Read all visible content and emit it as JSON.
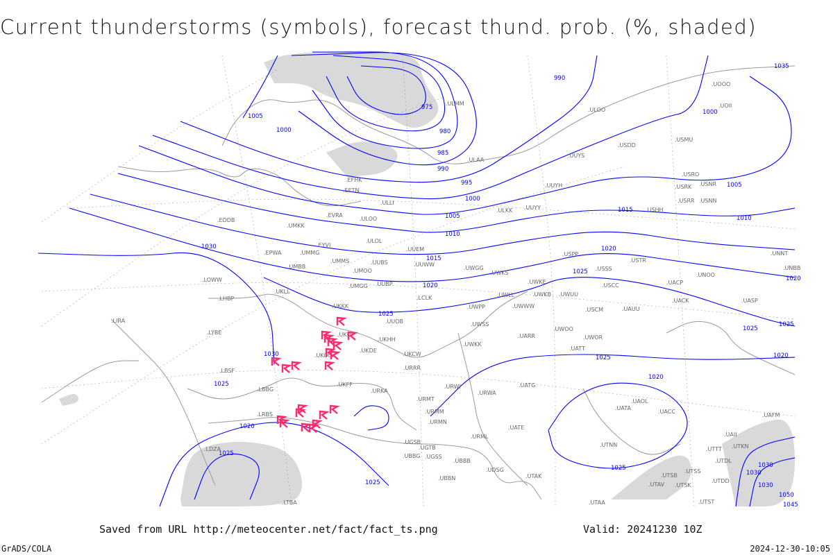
{
  "title": "Current thunderstorms (symbols), forecast thund. prob. (%, shaded)",
  "footer": {
    "source": "Saved from URL http://meteocenter.net/fact/fact_ts.png",
    "valid": "Valid: 20241230 10Z",
    "credit": "GrADS/COLA",
    "timestamp": "2024-12-30-10:05"
  },
  "colors": {
    "isobar": "#0000ff",
    "thunderstorm_symbol": "#ff2a6a",
    "shading": "#d9d9d9",
    "coastline": "#9a9a9a"
  },
  "isobar_labels": [
    "975",
    "980",
    "985",
    "990",
    "995",
    "1000",
    "1005",
    "1010",
    "1015",
    "1020",
    "1025",
    "1030",
    "1005",
    "1000",
    "990",
    "1000",
    "1005",
    "1010",
    "1015",
    "1020",
    "1020",
    "1025",
    "1025",
    "1025",
    "1025",
    "1020",
    "1020",
    "1025",
    "1030",
    "1030",
    "1025",
    "1020",
    "1025",
    "1025",
    "1035",
    "1030",
    "1030",
    "1045",
    "1050"
  ],
  "stations": [
    "ULLI",
    "ULOO",
    "UMKK",
    "EVRA",
    "EETN",
    "EFHK",
    "ULOL",
    "UUEM",
    "EYVI",
    "UMMG",
    "UMMS",
    "UMOO",
    "UUBS",
    "UUWW",
    "UMBB",
    "EPWA",
    "UKLL",
    "UMGG",
    "UUBP",
    "UKKK",
    "UUOB",
    "UKLI",
    "UKHH",
    "UKOO",
    "UKDE",
    "UKCW",
    "UKFF",
    "URKA",
    "URRR",
    "URMT",
    "URMM",
    "URMN",
    "URWI",
    "URWA",
    "UATG",
    "UATE",
    "URML",
    "UGSB",
    "UGTB",
    "UBBB",
    "UBBG",
    "UGSS",
    "UBBN",
    "UDSG",
    "UATA",
    "UAOL",
    "UACC",
    "UAII",
    "UTTT",
    "UTKN",
    "UTDL",
    "UAFM",
    "UTNN",
    "UTAA",
    "UTAK",
    "UTAV",
    "UTSB",
    "UTSS",
    "UTSK",
    "UTDD",
    "UTST",
    "USCC",
    "USSS",
    "USTR",
    "UACP",
    "UACK",
    "UASP",
    "UARR",
    "UWOO",
    "UWOR",
    "UATT",
    "UWPP",
    "UWSS",
    "UWKK",
    "UWKE",
    "UWKB",
    "UWUU",
    "UWGG",
    "UWKS",
    "UWLL",
    "UWWW",
    "USPP",
    "USCM",
    "UAUU",
    "UNOO",
    "UNNT",
    "UNBB",
    "USHH",
    "ULKK",
    "UUYY",
    "UUYH",
    "UUYS",
    "ULAA",
    "ULMM",
    "ULOO",
    "USDD",
    "USMU",
    "USRO",
    "USRK",
    "USNR",
    "USRR",
    "USNN",
    "UOOO",
    "UOII",
    "LYBE",
    "LBSF",
    "LBBG",
    "LHBP",
    "LDZA",
    "LIRA",
    "EDDB",
    "LOWW",
    "LRBS",
    "LTBA",
    "LCLK",
    "UKKK"
  ]
}
